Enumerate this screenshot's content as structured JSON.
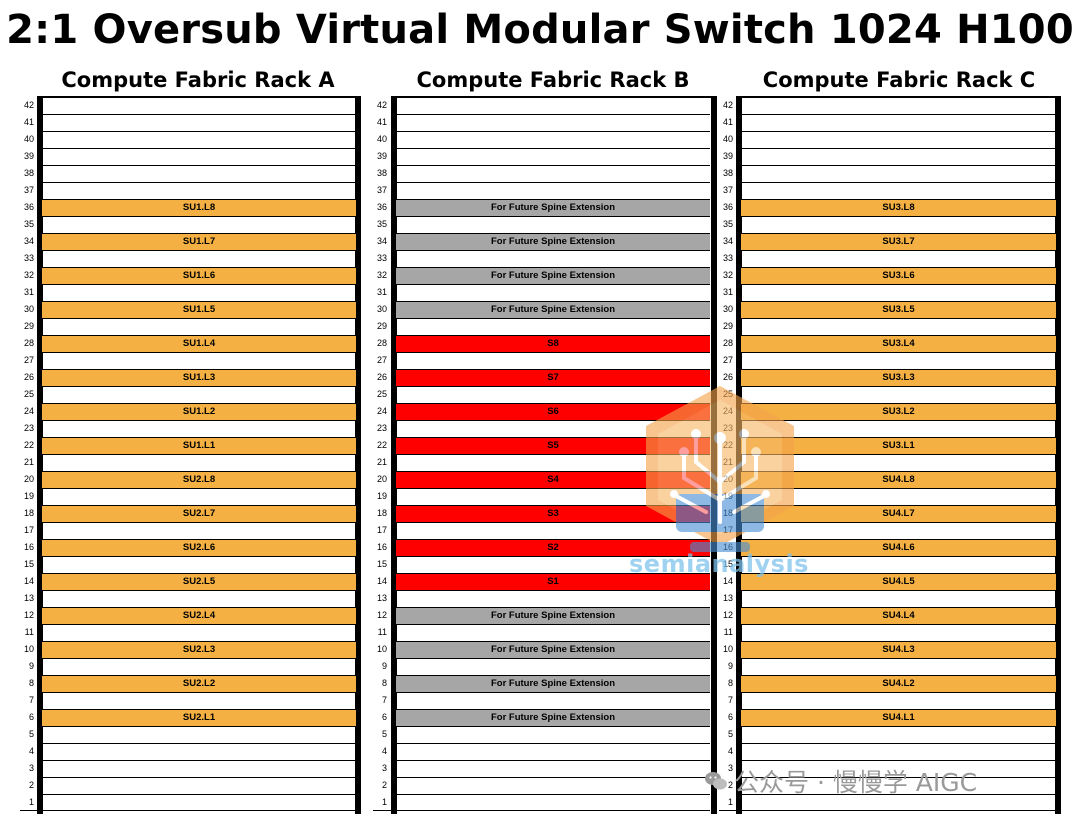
{
  "title": "2:1 Oversub Virtual Modular Switch 1024 H100",
  "colors": {
    "leaf": "#f4b043",
    "spine": "#ff0000",
    "future": "#a6a6a6",
    "empty": "#ffffff"
  },
  "racks": [
    {
      "title": "Compute Fabric Rack A",
      "units": [
        {
          "u": 42,
          "label": "",
          "kind": "empty"
        },
        {
          "u": 41,
          "label": "",
          "kind": "empty"
        },
        {
          "u": 40,
          "label": "",
          "kind": "empty"
        },
        {
          "u": 39,
          "label": "",
          "kind": "empty"
        },
        {
          "u": 38,
          "label": "",
          "kind": "empty"
        },
        {
          "u": 37,
          "label": "",
          "kind": "empty"
        },
        {
          "u": 36,
          "label": "SU1.L8",
          "kind": "leaf"
        },
        {
          "u": 35,
          "label": "",
          "kind": "empty"
        },
        {
          "u": 34,
          "label": "SU1.L7",
          "kind": "leaf"
        },
        {
          "u": 33,
          "label": "",
          "kind": "empty"
        },
        {
          "u": 32,
          "label": "SU1.L6",
          "kind": "leaf"
        },
        {
          "u": 31,
          "label": "",
          "kind": "empty"
        },
        {
          "u": 30,
          "label": "SU1.L5",
          "kind": "leaf"
        },
        {
          "u": 29,
          "label": "",
          "kind": "empty"
        },
        {
          "u": 28,
          "label": "SU1.L4",
          "kind": "leaf"
        },
        {
          "u": 27,
          "label": "",
          "kind": "empty"
        },
        {
          "u": 26,
          "label": "SU1.L3",
          "kind": "leaf"
        },
        {
          "u": 25,
          "label": "",
          "kind": "empty"
        },
        {
          "u": 24,
          "label": "SU1.L2",
          "kind": "leaf"
        },
        {
          "u": 23,
          "label": "",
          "kind": "empty"
        },
        {
          "u": 22,
          "label": "SU1.L1",
          "kind": "leaf"
        },
        {
          "u": 21,
          "label": "",
          "kind": "empty"
        },
        {
          "u": 20,
          "label": "SU2.L8",
          "kind": "leaf"
        },
        {
          "u": 19,
          "label": "",
          "kind": "empty"
        },
        {
          "u": 18,
          "label": "SU2.L7",
          "kind": "leaf"
        },
        {
          "u": 17,
          "label": "",
          "kind": "empty"
        },
        {
          "u": 16,
          "label": "SU2.L6",
          "kind": "leaf"
        },
        {
          "u": 15,
          "label": "",
          "kind": "empty"
        },
        {
          "u": 14,
          "label": "SU2.L5",
          "kind": "leaf"
        },
        {
          "u": 13,
          "label": "",
          "kind": "empty"
        },
        {
          "u": 12,
          "label": "SU2.L4",
          "kind": "leaf"
        },
        {
          "u": 11,
          "label": "",
          "kind": "empty"
        },
        {
          "u": 10,
          "label": "SU2.L3",
          "kind": "leaf"
        },
        {
          "u": 9,
          "label": "",
          "kind": "empty"
        },
        {
          "u": 8,
          "label": "SU2.L2",
          "kind": "leaf"
        },
        {
          "u": 7,
          "label": "",
          "kind": "empty"
        },
        {
          "u": 6,
          "label": "SU2.L1",
          "kind": "leaf"
        },
        {
          "u": 5,
          "label": "",
          "kind": "empty"
        },
        {
          "u": 4,
          "label": "",
          "kind": "empty"
        },
        {
          "u": 3,
          "label": "",
          "kind": "empty"
        },
        {
          "u": 2,
          "label": "",
          "kind": "empty"
        },
        {
          "u": 1,
          "label": "",
          "kind": "empty"
        }
      ]
    },
    {
      "title": "Compute Fabric Rack B",
      "units": [
        {
          "u": 42,
          "label": "",
          "kind": "empty"
        },
        {
          "u": 41,
          "label": "",
          "kind": "empty"
        },
        {
          "u": 40,
          "label": "",
          "kind": "empty"
        },
        {
          "u": 39,
          "label": "",
          "kind": "empty"
        },
        {
          "u": 38,
          "label": "",
          "kind": "empty"
        },
        {
          "u": 37,
          "label": "",
          "kind": "empty"
        },
        {
          "u": 36,
          "label": "For Future Spine Extension",
          "kind": "future"
        },
        {
          "u": 35,
          "label": "",
          "kind": "empty"
        },
        {
          "u": 34,
          "label": "For Future Spine Extension",
          "kind": "future"
        },
        {
          "u": 33,
          "label": "",
          "kind": "empty"
        },
        {
          "u": 32,
          "label": "For Future Spine Extension",
          "kind": "future"
        },
        {
          "u": 31,
          "label": "",
          "kind": "empty"
        },
        {
          "u": 30,
          "label": "For Future Spine Extension",
          "kind": "future"
        },
        {
          "u": 29,
          "label": "",
          "kind": "empty"
        },
        {
          "u": 28,
          "label": "S8",
          "kind": "spine"
        },
        {
          "u": 27,
          "label": "",
          "kind": "empty"
        },
        {
          "u": 26,
          "label": "S7",
          "kind": "spine"
        },
        {
          "u": 25,
          "label": "",
          "kind": "empty"
        },
        {
          "u": 24,
          "label": "S6",
          "kind": "spine"
        },
        {
          "u": 23,
          "label": "",
          "kind": "empty"
        },
        {
          "u": 22,
          "label": "S5",
          "kind": "spine"
        },
        {
          "u": 21,
          "label": "",
          "kind": "empty"
        },
        {
          "u": 20,
          "label": "S4",
          "kind": "spine"
        },
        {
          "u": 19,
          "label": "",
          "kind": "empty"
        },
        {
          "u": 18,
          "label": "S3",
          "kind": "spine"
        },
        {
          "u": 17,
          "label": "",
          "kind": "empty"
        },
        {
          "u": 16,
          "label": "S2",
          "kind": "spine"
        },
        {
          "u": 15,
          "label": "",
          "kind": "empty"
        },
        {
          "u": 14,
          "label": "S1",
          "kind": "spine"
        },
        {
          "u": 13,
          "label": "",
          "kind": "empty"
        },
        {
          "u": 12,
          "label": "For Future Spine Extension",
          "kind": "future"
        },
        {
          "u": 11,
          "label": "",
          "kind": "empty"
        },
        {
          "u": 10,
          "label": "For Future Spine Extension",
          "kind": "future"
        },
        {
          "u": 9,
          "label": "",
          "kind": "empty"
        },
        {
          "u": 8,
          "label": "For Future Spine Extension",
          "kind": "future"
        },
        {
          "u": 7,
          "label": "",
          "kind": "empty"
        },
        {
          "u": 6,
          "label": "For Future Spine Extension",
          "kind": "future"
        },
        {
          "u": 5,
          "label": "",
          "kind": "empty"
        },
        {
          "u": 4,
          "label": "",
          "kind": "empty"
        },
        {
          "u": 3,
          "label": "",
          "kind": "empty"
        },
        {
          "u": 2,
          "label": "",
          "kind": "empty"
        },
        {
          "u": 1,
          "label": "",
          "kind": "empty"
        }
      ]
    },
    {
      "title": "Compute Fabric Rack C",
      "units": [
        {
          "u": 42,
          "label": "",
          "kind": "empty"
        },
        {
          "u": 41,
          "label": "",
          "kind": "empty"
        },
        {
          "u": 40,
          "label": "",
          "kind": "empty"
        },
        {
          "u": 39,
          "label": "",
          "kind": "empty"
        },
        {
          "u": 38,
          "label": "",
          "kind": "empty"
        },
        {
          "u": 37,
          "label": "",
          "kind": "empty"
        },
        {
          "u": 36,
          "label": "SU3.L8",
          "kind": "leaf"
        },
        {
          "u": 35,
          "label": "",
          "kind": "empty"
        },
        {
          "u": 34,
          "label": "SU3.L7",
          "kind": "leaf"
        },
        {
          "u": 33,
          "label": "",
          "kind": "empty"
        },
        {
          "u": 32,
          "label": "SU3.L6",
          "kind": "leaf"
        },
        {
          "u": 31,
          "label": "",
          "kind": "empty"
        },
        {
          "u": 30,
          "label": "SU3.L5",
          "kind": "leaf"
        },
        {
          "u": 29,
          "label": "",
          "kind": "empty"
        },
        {
          "u": 28,
          "label": "SU3.L4",
          "kind": "leaf"
        },
        {
          "u": 27,
          "label": "",
          "kind": "empty"
        },
        {
          "u": 26,
          "label": "SU3.L3",
          "kind": "leaf"
        },
        {
          "u": 25,
          "label": "",
          "kind": "empty"
        },
        {
          "u": 24,
          "label": "SU3.L2",
          "kind": "leaf"
        },
        {
          "u": 23,
          "label": "",
          "kind": "empty"
        },
        {
          "u": 22,
          "label": "SU3.L1",
          "kind": "leaf"
        },
        {
          "u": 21,
          "label": "",
          "kind": "empty"
        },
        {
          "u": 20,
          "label": "SU4.L8",
          "kind": "leaf"
        },
        {
          "u": 19,
          "label": "",
          "kind": "empty"
        },
        {
          "u": 18,
          "label": "SU4.L7",
          "kind": "leaf"
        },
        {
          "u": 17,
          "label": "",
          "kind": "empty"
        },
        {
          "u": 16,
          "label": "SU4.L6",
          "kind": "leaf"
        },
        {
          "u": 15,
          "label": "",
          "kind": "empty"
        },
        {
          "u": 14,
          "label": "SU4.L5",
          "kind": "leaf"
        },
        {
          "u": 13,
          "label": "",
          "kind": "empty"
        },
        {
          "u": 12,
          "label": "SU4.L4",
          "kind": "leaf"
        },
        {
          "u": 11,
          "label": "",
          "kind": "empty"
        },
        {
          "u": 10,
          "label": "SU4.L3",
          "kind": "leaf"
        },
        {
          "u": 9,
          "label": "",
          "kind": "empty"
        },
        {
          "u": 8,
          "label": "SU4.L2",
          "kind": "leaf"
        },
        {
          "u": 7,
          "label": "",
          "kind": "empty"
        },
        {
          "u": 6,
          "label": "SU4.L1",
          "kind": "leaf"
        },
        {
          "u": 5,
          "label": "",
          "kind": "empty"
        },
        {
          "u": 4,
          "label": "",
          "kind": "empty"
        },
        {
          "u": 3,
          "label": "",
          "kind": "empty"
        },
        {
          "u": 2,
          "label": "",
          "kind": "empty"
        },
        {
          "u": 1,
          "label": "",
          "kind": "empty"
        }
      ]
    }
  ],
  "watermark": {
    "brand": "semianalysis",
    "icon": "tree-circuit-logo-icon"
  },
  "credit": {
    "text": "公众号 · 慢慢学 AIGC",
    "icon": "wechat-icon"
  }
}
